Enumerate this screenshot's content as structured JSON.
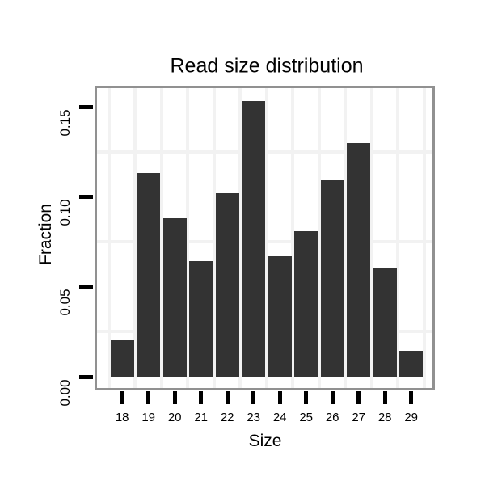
{
  "chart_data": {
    "type": "bar",
    "title": "Read size distribution",
    "xlabel": "Size",
    "ylabel": "Fraction",
    "categories": [
      "18",
      "19",
      "20",
      "21",
      "22",
      "23",
      "24",
      "25",
      "26",
      "27",
      "28",
      "29"
    ],
    "values": [
      0.02,
      0.113,
      0.088,
      0.064,
      0.102,
      0.153,
      0.067,
      0.081,
      0.109,
      0.13,
      0.06,
      0.014
    ],
    "y_ticks": [
      0.0,
      0.05,
      0.1,
      0.15
    ],
    "y_tick_labels": [
      "0.00",
      "0.05",
      "0.10",
      "0.15"
    ],
    "ylim": [
      -0.008,
      0.161
    ],
    "grid": {
      "h_minor_values": [
        0.025,
        0.075,
        0.125
      ],
      "v_lines_between_categories": true
    },
    "legend_position": "none",
    "colors": {
      "bar": "#333333",
      "grid": "#f2f2f2",
      "panel_border": "#919191",
      "tick": "#000000",
      "text": "#000000",
      "background": "#ffffff"
    }
  }
}
